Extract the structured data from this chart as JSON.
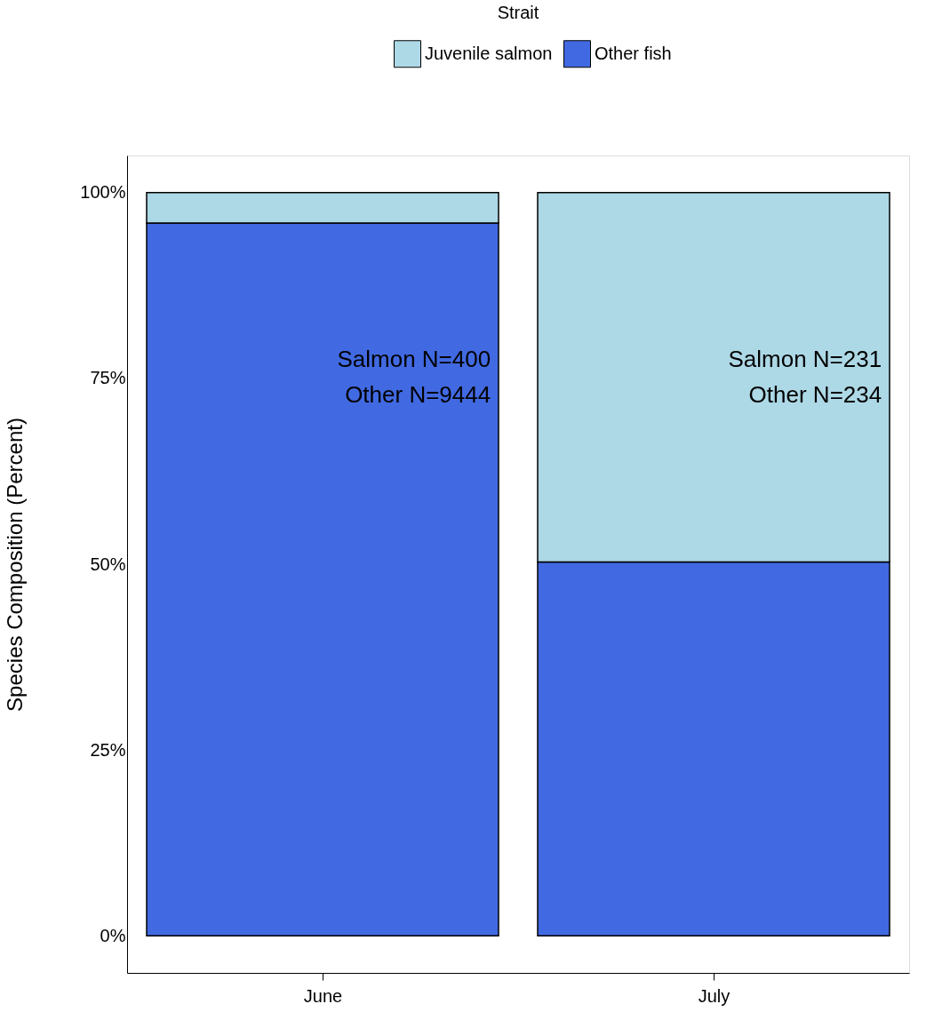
{
  "chart_data": {
    "type": "bar",
    "title": "Strait",
    "ylabel": "Species Composition (Percent)",
    "categories": [
      "June",
      "July"
    ],
    "stacked": true,
    "legend": "top",
    "grid": false,
    "series": [
      {
        "name": "Other fish",
        "color": "#4169e1",
        "values": [
          95.9,
          50.3
        ]
      },
      {
        "name": "Juvenile salmon",
        "color": "#add8e6",
        "values": [
          4.1,
          49.7
        ]
      }
    ],
    "ylim": [
      -5,
      105
    ],
    "yticks": [
      {
        "value": 0,
        "label": "0%"
      },
      {
        "value": 25,
        "label": "25%"
      },
      {
        "value": 50,
        "label": "50%"
      },
      {
        "value": 75,
        "label": "75%"
      },
      {
        "value": 100,
        "label": "100%"
      }
    ],
    "annotations": [
      "Salmon N=400",
      "Other N=9444",
      "Salmon N=231",
      "Other N=234"
    ]
  }
}
